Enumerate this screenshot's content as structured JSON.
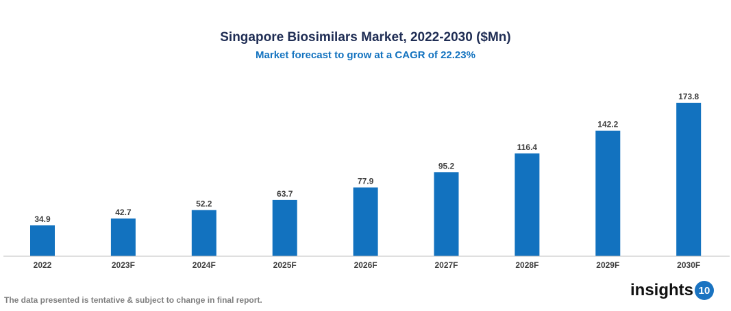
{
  "chart_data": {
    "type": "bar",
    "title": "Singapore Biosimilars Market, 2022-2030 ($Mn)",
    "subtitle": "Market forecast to grow at a CAGR of 22.23%",
    "categories": [
      "2022",
      "2023F",
      "2024F",
      "2025F",
      "2026F",
      "2027F",
      "2028F",
      "2029F",
      "2030F"
    ],
    "values": [
      34.9,
      42.7,
      52.2,
      63.7,
      77.9,
      95.2,
      116.4,
      142.2,
      173.8
    ],
    "xlabel": "",
    "ylabel": "",
    "ylim": [
      0,
      180
    ],
    "bar_color": "#1272bf",
    "grid": false
  },
  "footer": {
    "note": "The data presented is tentative & subject to change in final report.",
    "logo_text": "insights",
    "logo_number": "10"
  }
}
